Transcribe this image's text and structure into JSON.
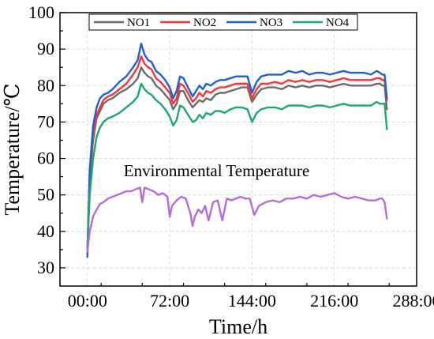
{
  "chart_data": {
    "type": "line",
    "xlabel": "Time/h",
    "ylabel": "Temperature/℃",
    "xlim": [
      -24,
      288
    ],
    "ylim": [
      25,
      100
    ],
    "xticks": [
      0,
      72,
      144,
      216,
      288
    ],
    "xtick_labels": [
      "00:00",
      "72:00",
      "144:00",
      "216:00",
      "288:00"
    ],
    "yticks": [
      30,
      40,
      50,
      60,
      70,
      80,
      90,
      100
    ],
    "ytick_labels": [
      "30",
      "40",
      "50",
      "60",
      "70",
      "80",
      "90",
      "100"
    ],
    "grid": true,
    "legend_position": "top",
    "annotations": [
      {
        "text": "Environmental Temperature",
        "x": 0,
        "y": 56
      }
    ],
    "series": [
      {
        "name": "NO1",
        "color": "#6b6b6b",
        "x": [
          0,
          2,
          5,
          8,
          11,
          14,
          18,
          22,
          28,
          34,
          40,
          44,
          47,
          50,
          53,
          56,
          60,
          64,
          68,
          72,
          75,
          78,
          81,
          84,
          88,
          92,
          95,
          98,
          101,
          104,
          108,
          112,
          116,
          120,
          125,
          130,
          135,
          140,
          144,
          148,
          152,
          158,
          164,
          170,
          176,
          182,
          188,
          194,
          200,
          206,
          212,
          218,
          224,
          230,
          236,
          242,
          248,
          253,
          256,
          258,
          260,
          262
        ],
        "values": [
          35,
          55,
          65,
          71,
          73,
          75,
          76,
          76.5,
          78,
          79,
          80.5,
          82,
          85,
          83.5,
          82.5,
          82,
          80,
          79,
          77.5,
          76,
          73.5,
          75,
          78.5,
          78.5,
          76,
          74,
          75,
          76,
          75.5,
          76.5,
          76,
          77.5,
          78,
          78,
          78.5,
          79,
          79.5,
          79.5,
          75.5,
          77.5,
          79,
          79.5,
          79.5,
          79,
          80,
          79.5,
          80,
          79.5,
          80,
          80,
          79.5,
          80,
          80.5,
          80,
          80,
          80,
          80,
          80.5,
          80.5,
          80,
          80,
          73.5
        ]
      },
      {
        "name": "NO2",
        "color": "#ff3333",
        "x": [
          0,
          2,
          5,
          8,
          11,
          14,
          18,
          22,
          28,
          34,
          40,
          44,
          47,
          50,
          53,
          56,
          60,
          64,
          68,
          72,
          75,
          78,
          81,
          84,
          88,
          92,
          95,
          98,
          101,
          104,
          108,
          112,
          116,
          120,
          125,
          130,
          135,
          140,
          144,
          148,
          152,
          158,
          164,
          170,
          176,
          182,
          188,
          194,
          200,
          206,
          212,
          218,
          224,
          230,
          236,
          242,
          248,
          253,
          256,
          258,
          260,
          262
        ],
        "values": [
          35,
          56,
          67,
          72,
          74,
          76,
          77,
          77.5,
          79,
          80.5,
          83,
          85,
          88,
          86,
          85,
          84.5,
          82,
          81,
          79.5,
          78,
          75,
          76.5,
          80.5,
          80,
          78,
          75.5,
          76.5,
          78,
          77,
          78.5,
          78,
          79,
          79.5,
          79.5,
          80,
          80.5,
          80.5,
          80.5,
          76.5,
          79,
          80.5,
          80.5,
          81,
          80.5,
          81.5,
          81,
          81.5,
          81,
          81.5,
          81.5,
          81,
          81.5,
          82,
          81.5,
          81.5,
          81.5,
          81.5,
          82,
          82,
          81.5,
          81.5,
          76
        ]
      },
      {
        "name": "NO3",
        "color": "#1f5fd6",
        "x": [
          0,
          2,
          5,
          8,
          11,
          14,
          18,
          22,
          28,
          34,
          40,
          44,
          47,
          50,
          53,
          56,
          60,
          64,
          68,
          72,
          75,
          78,
          81,
          84,
          88,
          92,
          95,
          98,
          101,
          104,
          108,
          112,
          116,
          120,
          125,
          130,
          135,
          140,
          144,
          148,
          152,
          158,
          164,
          170,
          176,
          182,
          188,
          194,
          200,
          206,
          212,
          218,
          224,
          230,
          236,
          242,
          248,
          253,
          256,
          258,
          260,
          262
        ],
        "values": [
          33,
          57,
          69,
          74,
          76.5,
          77.5,
          78,
          79,
          81,
          82.5,
          85,
          87,
          91.5,
          88.5,
          87,
          86.5,
          84,
          83,
          81.5,
          79.5,
          76.5,
          78.5,
          82.5,
          82,
          79.5,
          77,
          78.5,
          80,
          79,
          80.5,
          80,
          81,
          81.5,
          81.5,
          82,
          82.5,
          82.5,
          82.5,
          78,
          81,
          82.5,
          83,
          83,
          83,
          84,
          83.5,
          84,
          83,
          83.5,
          83.5,
          83,
          83.5,
          84,
          83.5,
          83.5,
          83.5,
          83,
          84,
          83.5,
          83,
          83,
          76.5
        ]
      },
      {
        "name": "NO4",
        "color": "#1aaa6a",
        "x": [
          0,
          2,
          5,
          8,
          11,
          14,
          18,
          22,
          28,
          34,
          40,
          44,
          47,
          50,
          53,
          56,
          60,
          64,
          68,
          72,
          75,
          78,
          81,
          84,
          88,
          92,
          95,
          98,
          101,
          104,
          108,
          112,
          116,
          120,
          125,
          130,
          135,
          140,
          144,
          148,
          152,
          158,
          164,
          170,
          176,
          182,
          188,
          194,
          200,
          206,
          212,
          218,
          224,
          230,
          236,
          242,
          248,
          253,
          256,
          258,
          260,
          262
        ],
        "values": [
          36,
          50,
          60,
          66,
          68.5,
          70,
          71,
          71.5,
          72.5,
          74,
          75.5,
          77,
          80.5,
          79,
          78,
          77.5,
          76,
          75,
          73.5,
          71.5,
          69,
          70.5,
          74.5,
          74,
          72,
          70,
          70.5,
          72,
          71,
          72.5,
          72,
          73,
          73,
          72.5,
          73.5,
          74,
          74,
          73.5,
          70,
          72.5,
          73.5,
          74,
          74,
          73.5,
          74.5,
          74.5,
          74.5,
          74,
          74.5,
          74.5,
          74,
          74.5,
          75,
          74.5,
          74.5,
          74.5,
          74.5,
          75.5,
          75,
          75,
          75,
          68
        ]
      },
      {
        "name": "Environmental Temperature",
        "color": "#b56be0",
        "x": [
          0,
          2,
          5,
          8,
          11,
          14,
          18,
          22,
          26,
          30,
          34,
          38,
          42,
          46,
          48,
          50,
          54,
          58,
          62,
          66,
          70,
          72,
          74,
          78,
          82,
          86,
          90,
          92,
          94,
          97,
          100,
          103,
          106,
          110,
          114,
          118,
          122,
          126,
          130,
          134,
          138,
          142,
          146,
          150,
          156,
          162,
          168,
          174,
          180,
          186,
          192,
          198,
          204,
          210,
          216,
          222,
          228,
          234,
          240,
          246,
          252,
          256,
          258,
          260,
          262
        ],
        "values": [
          34.5,
          40,
          44,
          46,
          47.5,
          48,
          49,
          49.5,
          50,
          50.5,
          51,
          51,
          51.5,
          52,
          48,
          52,
          51.5,
          51,
          50,
          50.5,
          49.5,
          44,
          47,
          48.5,
          49.5,
          49,
          45,
          41.5,
          44,
          46,
          45,
          47,
          43,
          48,
          48.5,
          43,
          49,
          48.5,
          49,
          49.5,
          49,
          49,
          44.5,
          47,
          48,
          48.5,
          48,
          49,
          49,
          49.5,
          49,
          50,
          49.5,
          50,
          50.5,
          49.5,
          49,
          49.5,
          49,
          48.5,
          48.5,
          49,
          49,
          48,
          43.5
        ]
      }
    ]
  }
}
